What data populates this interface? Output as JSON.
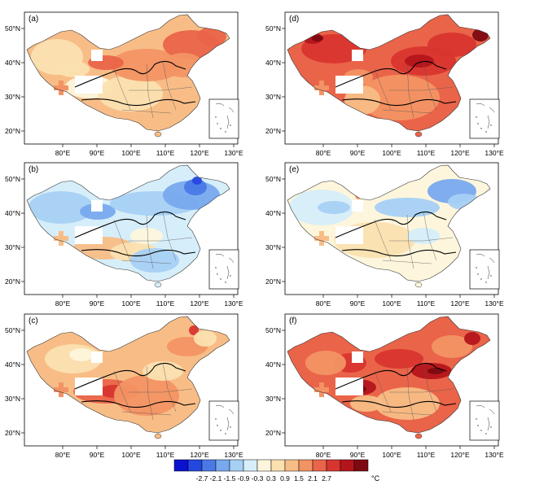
{
  "panels": [
    {
      "label": "(a)",
      "theme": "warm_mid"
    },
    {
      "label": "(d)",
      "theme": "warm_high"
    },
    {
      "label": "(b)",
      "theme": "cool"
    },
    {
      "label": "(e)",
      "theme": "cool_light"
    },
    {
      "label": "(c)",
      "theme": "warm_mid2"
    },
    {
      "label": "(f)",
      "theme": "warm_high2"
    }
  ],
  "lon_ticks": [
    "80°E",
    "90°E",
    "100°E",
    "110°E",
    "120°E",
    "130°E"
  ],
  "lat_ticks": [
    "50°N",
    "40°N",
    "30°N",
    "20°N"
  ],
  "colorbar": {
    "tick_labels": [
      "-2.7",
      "-2.1",
      "-1.5",
      "-0.9",
      "-0.3",
      "0.3",
      "0.9",
      "1.5",
      "2.1",
      "2.7"
    ],
    "unit": "°C",
    "colors": [
      "#0b12cf",
      "#2447e0",
      "#4a79e6",
      "#78a9ee",
      "#a6d0f4",
      "#d6eefa",
      "#fdf6dc",
      "#fbe0b0",
      "#f8bd86",
      "#f39364",
      "#ea6449",
      "#d9352f",
      "#b4151c",
      "#7d0a12"
    ]
  }
}
